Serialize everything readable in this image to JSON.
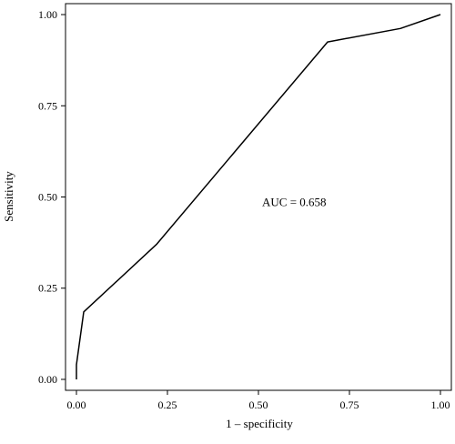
{
  "chart_data": {
    "type": "line",
    "xlabel": "1 – specificity",
    "ylabel": "Sensitivity",
    "xlim": [
      -0.03,
      1.03
    ],
    "ylim": [
      -0.03,
      1.03
    ],
    "x_ticks": [
      0.0,
      0.25,
      0.5,
      0.75,
      1.0
    ],
    "x_tick_labels": [
      "0.00",
      "0.25",
      "0.50",
      "0.75",
      "1.00"
    ],
    "y_ticks": [
      0.0,
      0.25,
      0.5,
      0.75,
      1.0
    ],
    "y_tick_labels": [
      "0.00",
      "0.25",
      "0.50",
      "0.75",
      "1.00"
    ],
    "grid": false,
    "legend": "none",
    "series": [
      {
        "x": [
          0.0,
          0.0,
          0.02,
          0.22,
          0.69,
          0.89,
          1.0
        ],
        "y": [
          0.0,
          0.04,
          0.185,
          0.37,
          0.925,
          0.962,
          1.0
        ],
        "color": "#000000"
      }
    ],
    "annotations": [
      {
        "text": "AUC = 0.658",
        "x": 0.51,
        "y": 0.475
      }
    ]
  }
}
